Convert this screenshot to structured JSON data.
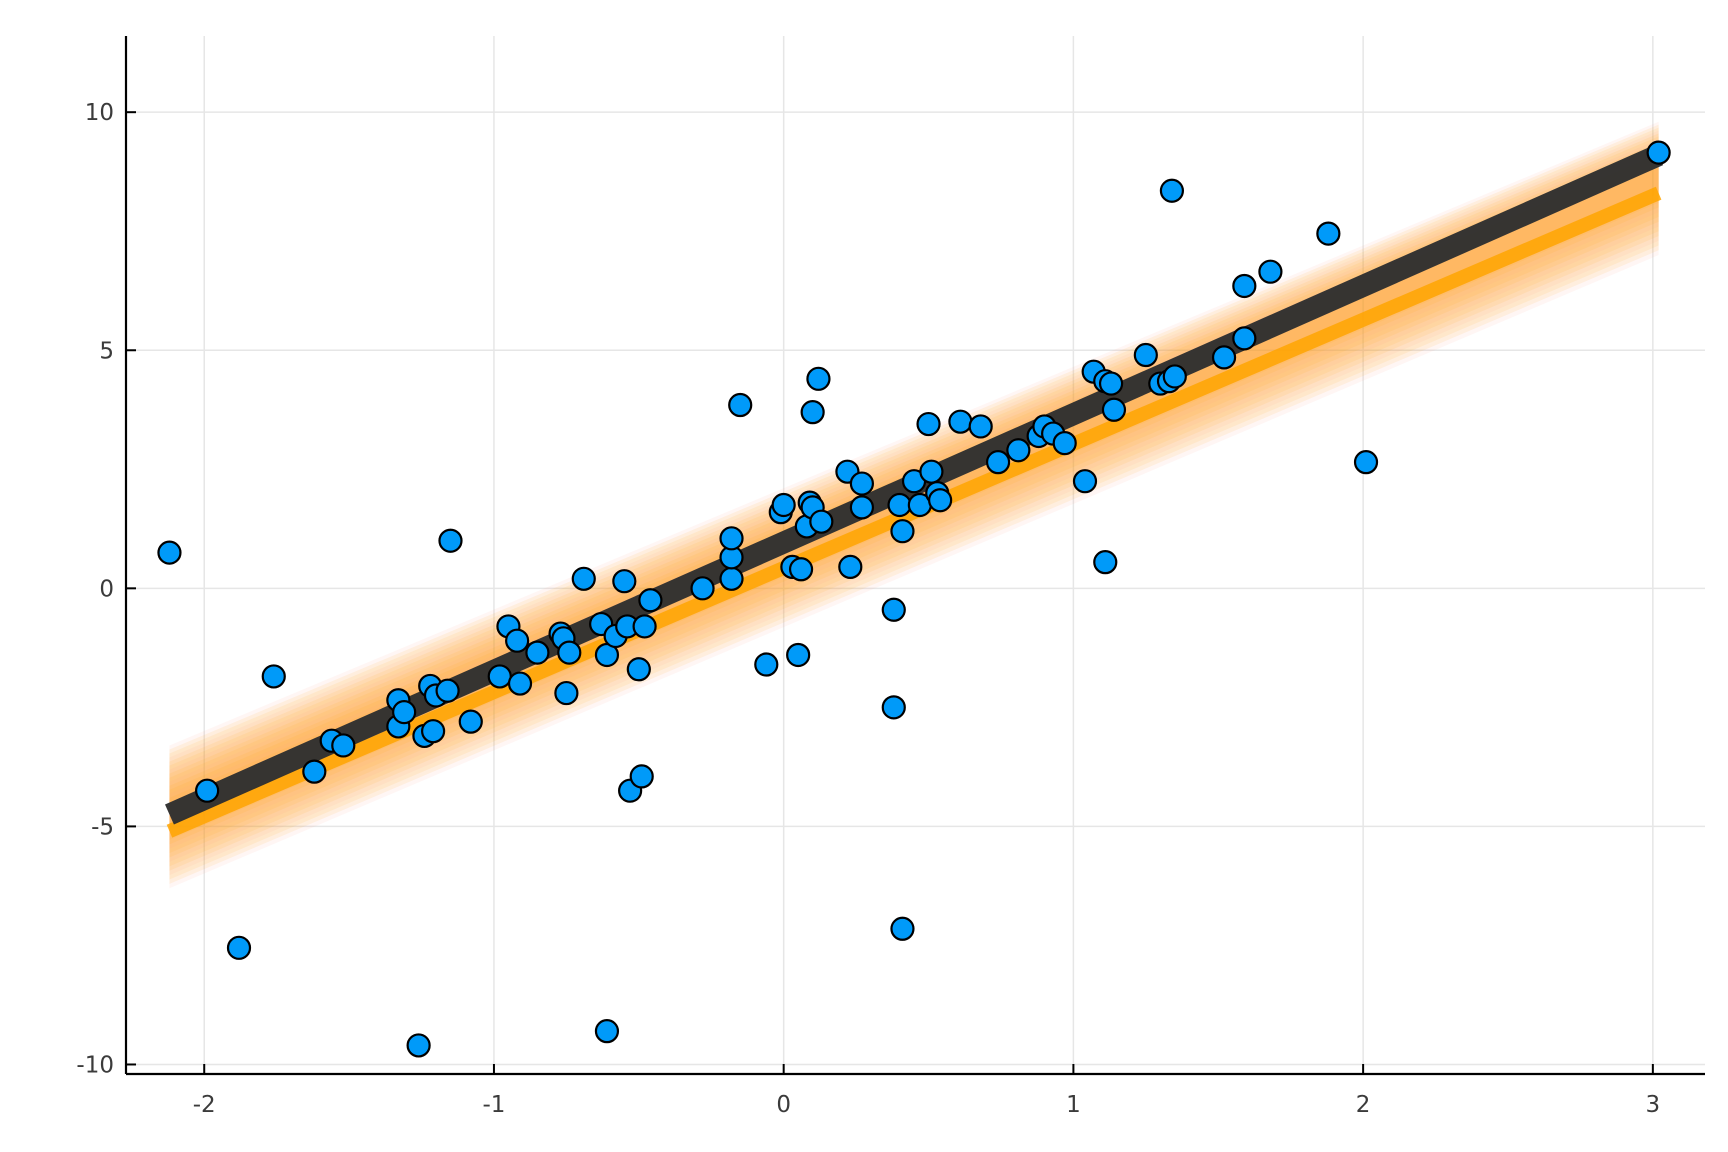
{
  "chart_data": {
    "type": "scatter",
    "title": "",
    "xlabel": "",
    "ylabel": "",
    "xlim": [
      -2.27,
      3.18
    ],
    "ylim": [
      -10.2,
      11.6
    ],
    "xticks": [
      -2,
      -1,
      0,
      1,
      2,
      3
    ],
    "yticks": [
      -10,
      -5,
      0,
      5,
      10
    ],
    "xtick_labels": [
      "-2",
      "-1",
      "0",
      "1",
      "2",
      "3"
    ],
    "ytick_labels": [
      "-10",
      "-5",
      "0",
      "5",
      "10"
    ],
    "grid": true,
    "legend": "none",
    "colors": {
      "points": "#009AF9",
      "point_edge": "#000000",
      "fit_line": "#2f2f2f",
      "posterior_band": "#FFA500",
      "posterior_band_alt": "#FF9E82",
      "grid": "#e6e6e6",
      "axis": "#000000",
      "tick_text": "#3b3b3b"
    },
    "fit_line": {
      "x": [
        -2.12,
        3.02
      ],
      "y": [
        -4.75,
        9.1
      ]
    },
    "posterior_band": {
      "x": [
        -2.12,
        3.02
      ],
      "lower": [
        -6.3,
        7.0
      ],
      "upper": [
        -3.3,
        9.8
      ],
      "center": [
        -5.1,
        8.3
      ]
    },
    "points": [
      {
        "x": -2.12,
        "y": 0.75
      },
      {
        "x": -1.99,
        "y": -4.25
      },
      {
        "x": -1.88,
        "y": -7.55
      },
      {
        "x": -1.76,
        "y": -1.85
      },
      {
        "x": -1.62,
        "y": -3.85
      },
      {
        "x": -1.56,
        "y": -3.2
      },
      {
        "x": -1.52,
        "y": -3.3
      },
      {
        "x": -1.33,
        "y": -2.35
      },
      {
        "x": -1.33,
        "y": -2.9
      },
      {
        "x": -1.31,
        "y": -2.6
      },
      {
        "x": -1.26,
        "y": -9.6
      },
      {
        "x": -1.24,
        "y": -3.1
      },
      {
        "x": -1.22,
        "y": -2.05
      },
      {
        "x": -1.21,
        "y": -3.0
      },
      {
        "x": -1.2,
        "y": -2.25
      },
      {
        "x": -1.16,
        "y": -2.15
      },
      {
        "x": -1.15,
        "y": 1.0
      },
      {
        "x": -1.08,
        "y": -2.8
      },
      {
        "x": -0.98,
        "y": -1.85
      },
      {
        "x": -0.95,
        "y": -0.8
      },
      {
        "x": -0.92,
        "y": -1.1
      },
      {
        "x": -0.91,
        "y": -2.0
      },
      {
        "x": -0.85,
        "y": -1.35
      },
      {
        "x": -0.77,
        "y": -0.95
      },
      {
        "x": -0.76,
        "y": -1.05
      },
      {
        "x": -0.75,
        "y": -2.2
      },
      {
        "x": -0.74,
        "y": -1.35
      },
      {
        "x": -0.69,
        "y": 0.2
      },
      {
        "x": -0.63,
        "y": -0.75
      },
      {
        "x": -0.61,
        "y": -1.4
      },
      {
        "x": -0.61,
        "y": -9.3
      },
      {
        "x": -0.58,
        "y": -1.0
      },
      {
        "x": -0.55,
        "y": 0.15
      },
      {
        "x": -0.54,
        "y": -0.8
      },
      {
        "x": -0.53,
        "y": -4.25
      },
      {
        "x": -0.5,
        "y": -1.7
      },
      {
        "x": -0.49,
        "y": -3.95
      },
      {
        "x": -0.48,
        "y": -0.8
      },
      {
        "x": -0.46,
        "y": -0.25
      },
      {
        "x": -0.28,
        "y": 0.0
      },
      {
        "x": -0.18,
        "y": 0.2
      },
      {
        "x": -0.18,
        "y": 0.65
      },
      {
        "x": -0.18,
        "y": 1.05
      },
      {
        "x": -0.15,
        "y": 3.85
      },
      {
        "x": -0.06,
        "y": -1.6
      },
      {
        "x": -0.01,
        "y": 1.6
      },
      {
        "x": 0.0,
        "y": 1.75
      },
      {
        "x": 0.03,
        "y": 0.45
      },
      {
        "x": 0.05,
        "y": -1.4
      },
      {
        "x": 0.06,
        "y": 0.4
      },
      {
        "x": 0.08,
        "y": 1.3
      },
      {
        "x": 0.09,
        "y": 1.8
      },
      {
        "x": 0.1,
        "y": 3.7
      },
      {
        "x": 0.1,
        "y": 1.7
      },
      {
        "x": 0.12,
        "y": 4.4
      },
      {
        "x": 0.13,
        "y": 1.4
      },
      {
        "x": 0.22,
        "y": 2.45
      },
      {
        "x": 0.23,
        "y": 0.45
      },
      {
        "x": 0.27,
        "y": 2.2
      },
      {
        "x": 0.27,
        "y": 1.7
      },
      {
        "x": 0.38,
        "y": -0.45
      },
      {
        "x": 0.38,
        "y": -2.5
      },
      {
        "x": 0.4,
        "y": 1.75
      },
      {
        "x": 0.41,
        "y": 1.2
      },
      {
        "x": 0.41,
        "y": -7.15
      },
      {
        "x": 0.45,
        "y": 2.25
      },
      {
        "x": 0.47,
        "y": 1.75
      },
      {
        "x": 0.5,
        "y": 3.45
      },
      {
        "x": 0.51,
        "y": 2.45
      },
      {
        "x": 0.53,
        "y": 2.0
      },
      {
        "x": 0.54,
        "y": 1.85
      },
      {
        "x": 0.61,
        "y": 3.5
      },
      {
        "x": 0.68,
        "y": 3.4
      },
      {
        "x": 0.74,
        "y": 2.65
      },
      {
        "x": 0.81,
        "y": 2.9
      },
      {
        "x": 0.88,
        "y": 3.2
      },
      {
        "x": 0.9,
        "y": 3.4
      },
      {
        "x": 0.93,
        "y": 3.25
      },
      {
        "x": 0.97,
        "y": 3.05
      },
      {
        "x": 1.04,
        "y": 2.25
      },
      {
        "x": 1.07,
        "y": 4.55
      },
      {
        "x": 1.11,
        "y": 0.55
      },
      {
        "x": 1.11,
        "y": 4.35
      },
      {
        "x": 1.13,
        "y": 4.3
      },
      {
        "x": 1.14,
        "y": 3.75
      },
      {
        "x": 1.25,
        "y": 4.9
      },
      {
        "x": 1.3,
        "y": 4.3
      },
      {
        "x": 1.33,
        "y": 4.35
      },
      {
        "x": 1.34,
        "y": 8.35
      },
      {
        "x": 1.35,
        "y": 4.45
      },
      {
        "x": 1.52,
        "y": 4.85
      },
      {
        "x": 1.59,
        "y": 6.35
      },
      {
        "x": 1.59,
        "y": 5.25
      },
      {
        "x": 1.68,
        "y": 6.65
      },
      {
        "x": 1.88,
        "y": 7.45
      },
      {
        "x": 2.01,
        "y": 2.65
      },
      {
        "x": 3.02,
        "y": 9.15
      }
    ]
  }
}
